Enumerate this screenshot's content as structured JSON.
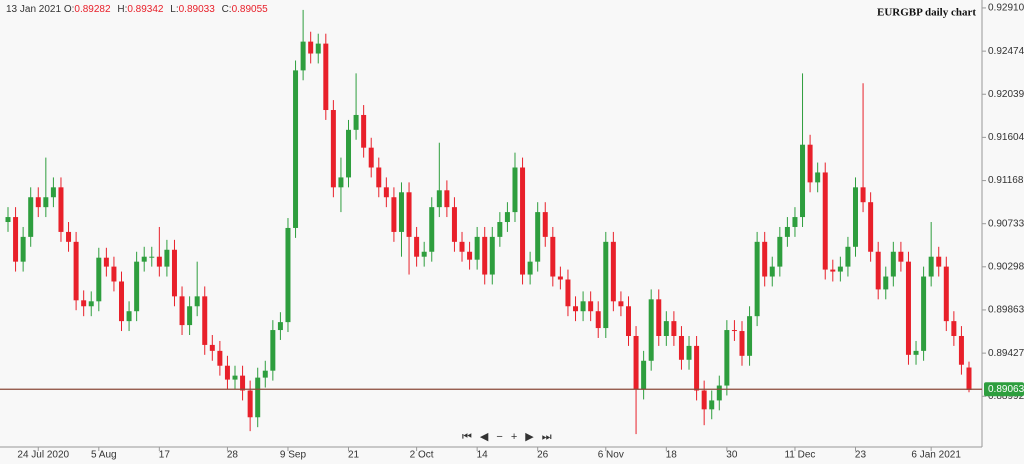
{
  "chart_data": {
    "type": "candlestick",
    "title": "EURGBP daily chart",
    "crosshair_date": "13 Jan 2021",
    "ohlc_labels": [
      "O:",
      "H:",
      "L:",
      "C:"
    ],
    "up_color": "#2e9e3e",
    "down_color": "#e8202a",
    "ylim": [
      0.8848,
      0.9299
    ],
    "yticks": [
      {
        "value": 0.9291,
        "label": "0.92910"
      },
      0.92474,
      0.92039,
      0.91604,
      0.91168,
      0.90733,
      0.90298,
      0.89863,
      0.89427,
      0.88992
    ],
    "last_price": 0.89063,
    "last_price_color": "#2e9e3e",
    "last_price_line_color": "#8b4a3a",
    "categories": [
      null,
      null,
      null,
      null,
      "24 Jul 2020",
      null,
      null,
      null,
      null,
      null,
      null,
      null,
      "5 Aug",
      null,
      null,
      null,
      null,
      null,
      null,
      null,
      "17",
      null,
      null,
      null,
      null,
      null,
      null,
      null,
      null,
      "28",
      null,
      null,
      null,
      null,
      null,
      null,
      null,
      "9 Sep",
      null,
      null,
      null,
      null,
      null,
      null,
      null,
      "21",
      null,
      null,
      null,
      null,
      null,
      null,
      null,
      null,
      "2 Oct",
      null,
      null,
      null,
      null,
      null,
      null,
      null,
      "14",
      null,
      null,
      null,
      null,
      null,
      null,
      null,
      "26",
      null,
      null,
      null,
      null,
      null,
      null,
      null,
      null,
      "6 Nov",
      null,
      null,
      null,
      null,
      null,
      null,
      null,
      "18",
      null,
      null,
      null,
      null,
      null,
      null,
      null,
      "30",
      null,
      null,
      null,
      null,
      null,
      null,
      null,
      null,
      "11 Dec",
      null,
      null,
      null,
      null,
      null,
      null,
      null,
      "23",
      null,
      null,
      null,
      null,
      null,
      null,
      null,
      null,
      null,
      "6 Jan 2021",
      null,
      null,
      null,
      null,
      null
    ],
    "open": [
      0.9075,
      0.908,
      0.9035,
      0.906,
      0.91,
      0.909,
      0.91,
      0.911,
      0.9065,
      0.9055,
      0.8996,
      0.899,
      0.8995,
      0.9039,
      0.903,
      0.9015,
      0.8975,
      0.8985,
      0.9035,
      0.904,
      0.904,
      0.903,
      0.9047,
      0.9,
      0.8971,
      0.899,
      0.9,
      0.8951,
      0.8945,
      0.893,
      0.8916,
      0.892,
      0.8905,
      0.8878,
      0.8918,
      0.8925,
      0.8966,
      0.8974,
      0.9069,
      0.9228,
      0.9257,
      0.9245,
      0.9255,
      0.9188,
      0.911,
      0.912,
      0.9168,
      0.9183,
      0.915,
      0.913,
      0.911,
      0.91,
      0.9065,
      0.9105,
      0.906,
      0.904,
      0.9045,
      0.909,
      0.9107,
      0.909,
      0.9055,
      0.9045,
      0.9037,
      0.906,
      0.9022,
      0.906,
      0.9075,
      0.9085,
      0.913,
      0.9022,
      0.9035,
      0.9085,
      0.906,
      0.902,
      0.9017,
      0.899,
      0.8985,
      0.8995,
      0.8985,
      0.8968,
      0.9055,
      0.8995,
      0.899,
      0.896,
      0.8906,
      0.8935,
      0.8997,
      0.896,
      0.8975,
      0.896,
      0.8936,
      0.895,
      0.8905,
      0.8886,
      0.8895,
      0.891,
      0.8966,
      0.8965,
      0.894,
      0.898,
      0.9055,
      0.902,
      0.903,
      0.906,
      0.907,
      0.908,
      0.9153,
      0.9115,
      0.9125,
      0.9027,
      0.9025,
      0.903,
      0.905,
      0.911,
      0.9095,
      0.9045,
      0.9007,
      0.902,
      0.9045,
      0.9035,
      0.8941,
      0.8945,
      0.902,
      0.904,
      0.903,
      0.8975,
      0.896,
      0.89282
    ],
    "high": [
      0.909,
      0.909,
      0.907,
      0.911,
      0.911,
      0.914,
      0.912,
      0.912,
      0.9075,
      0.9065,
      0.9006,
      0.9005,
      0.9049,
      0.9049,
      0.904,
      0.9025,
      0.8995,
      0.9045,
      0.905,
      0.905,
      0.907,
      0.9057,
      0.9057,
      0.901,
      0.9,
      0.9035,
      0.901,
      0.8961,
      0.8955,
      0.894,
      0.893,
      0.893,
      0.8915,
      0.8928,
      0.8935,
      0.8976,
      0.8984,
      0.9079,
      0.9238,
      0.9289,
      0.9267,
      0.9265,
      0.9265,
      0.9198,
      0.914,
      0.9178,
      0.9225,
      0.9193,
      0.916,
      0.914,
      0.912,
      0.911,
      0.9115,
      0.9115,
      0.907,
      0.9055,
      0.91,
      0.9155,
      0.9117,
      0.91,
      0.9065,
      0.9055,
      0.907,
      0.907,
      0.907,
      0.9085,
      0.9095,
      0.9145,
      0.914,
      0.9045,
      0.9095,
      0.9095,
      0.907,
      0.903,
      0.9027,
      0.9,
      0.9005,
      0.9005,
      0.8995,
      0.9065,
      0.9065,
      0.9005,
      0.9,
      0.897,
      0.8945,
      0.9007,
      0.9007,
      0.8985,
      0.8985,
      0.897,
      0.896,
      0.896,
      0.8915,
      0.8905,
      0.892,
      0.8976,
      0.8976,
      0.8975,
      0.899,
      0.9065,
      0.9065,
      0.904,
      0.907,
      0.908,
      0.909,
      0.9225,
      0.9163,
      0.9135,
      0.9135,
      0.9037,
      0.904,
      0.906,
      0.912,
      0.9215,
      0.9105,
      0.9055,
      0.903,
      0.9055,
      0.9055,
      0.9045,
      0.8955,
      0.903,
      0.9075,
      0.905,
      0.904,
      0.8985,
      0.897,
      0.89342
    ],
    "low": [
      0.9065,
      0.9025,
      0.9025,
      0.905,
      0.908,
      0.908,
      0.909,
      0.9055,
      0.9045,
      0.8986,
      0.898,
      0.898,
      0.8985,
      0.902,
      0.9005,
      0.8965,
      0.8965,
      0.8975,
      0.9025,
      0.903,
      0.902,
      0.902,
      0.899,
      0.8961,
      0.8961,
      0.898,
      0.8941,
      0.8935,
      0.892,
      0.8906,
      0.8906,
      0.8895,
      0.8864,
      0.8868,
      0.8908,
      0.8915,
      0.8956,
      0.8964,
      0.9059,
      0.9218,
      0.9235,
      0.9235,
      0.9178,
      0.91,
      0.9085,
      0.911,
      0.9158,
      0.914,
      0.912,
      0.91,
      0.909,
      0.9055,
      0.904,
      0.9022,
      0.903,
      0.903,
      0.9035,
      0.908,
      0.908,
      0.9045,
      0.9035,
      0.9027,
      0.9027,
      0.9012,
      0.9012,
      0.905,
      0.9065,
      0.9075,
      0.9012,
      0.9012,
      0.9025,
      0.905,
      0.901,
      0.9007,
      0.898,
      0.8975,
      0.8975,
      0.8975,
      0.8958,
      0.8958,
      0.8985,
      0.898,
      0.895,
      0.8861,
      0.8896,
      0.8925,
      0.895,
      0.895,
      0.895,
      0.8926,
      0.8926,
      0.8895,
      0.887,
      0.8876,
      0.8885,
      0.89,
      0.8955,
      0.893,
      0.893,
      0.897,
      0.901,
      0.901,
      0.902,
      0.905,
      0.906,
      0.907,
      0.9105,
      0.9105,
      0.9017,
      0.9015,
      0.9015,
      0.902,
      0.904,
      0.9085,
      0.9035,
      0.8997,
      0.8997,
      0.901,
      0.9025,
      0.8931,
      0.8931,
      0.8935,
      0.901,
      0.902,
      0.8965,
      0.895,
      0.8921,
      0.89033
    ],
    "close": [
      0.908,
      0.9035,
      0.906,
      0.91,
      0.909,
      0.91,
      0.911,
      0.9065,
      0.9055,
      0.8996,
      0.899,
      0.8995,
      0.9039,
      0.903,
      0.9015,
      0.8975,
      0.8985,
      0.9035,
      0.904,
      0.904,
      0.903,
      0.9047,
      0.9,
      0.8971,
      0.899,
      0.9,
      0.8951,
      0.8945,
      0.893,
      0.8916,
      0.892,
      0.8905,
      0.8878,
      0.8918,
      0.8925,
      0.8966,
      0.8974,
      0.9069,
      0.9228,
      0.9257,
      0.9245,
      0.9255,
      0.9188,
      0.911,
      0.912,
      0.9168,
      0.9183,
      0.915,
      0.913,
      0.911,
      0.91,
      0.9065,
      0.9105,
      0.906,
      0.904,
      0.9045,
      0.909,
      0.9107,
      0.909,
      0.9055,
      0.9045,
      0.9037,
      0.906,
      0.9022,
      0.906,
      0.9075,
      0.9085,
      0.913,
      0.9022,
      0.9035,
      0.9085,
      0.906,
      0.902,
      0.9017,
      0.899,
      0.8985,
      0.8995,
      0.8985,
      0.8968,
      0.9055,
      0.8995,
      0.899,
      0.896,
      0.8906,
      0.8935,
      0.8997,
      0.896,
      0.8975,
      0.896,
      0.8936,
      0.895,
      0.8905,
      0.8886,
      0.8895,
      0.891,
      0.8966,
      0.8965,
      0.894,
      0.898,
      0.9055,
      0.902,
      0.903,
      0.906,
      0.907,
      0.908,
      0.9153,
      0.9115,
      0.9125,
      0.9027,
      0.9025,
      0.903,
      0.905,
      0.911,
      0.9095,
      0.9045,
      0.9007,
      0.902,
      0.9045,
      0.9035,
      0.8941,
      0.8945,
      0.902,
      0.904,
      0.903,
      0.8975,
      0.896,
      0.8931,
      0.89055
    ]
  }
}
